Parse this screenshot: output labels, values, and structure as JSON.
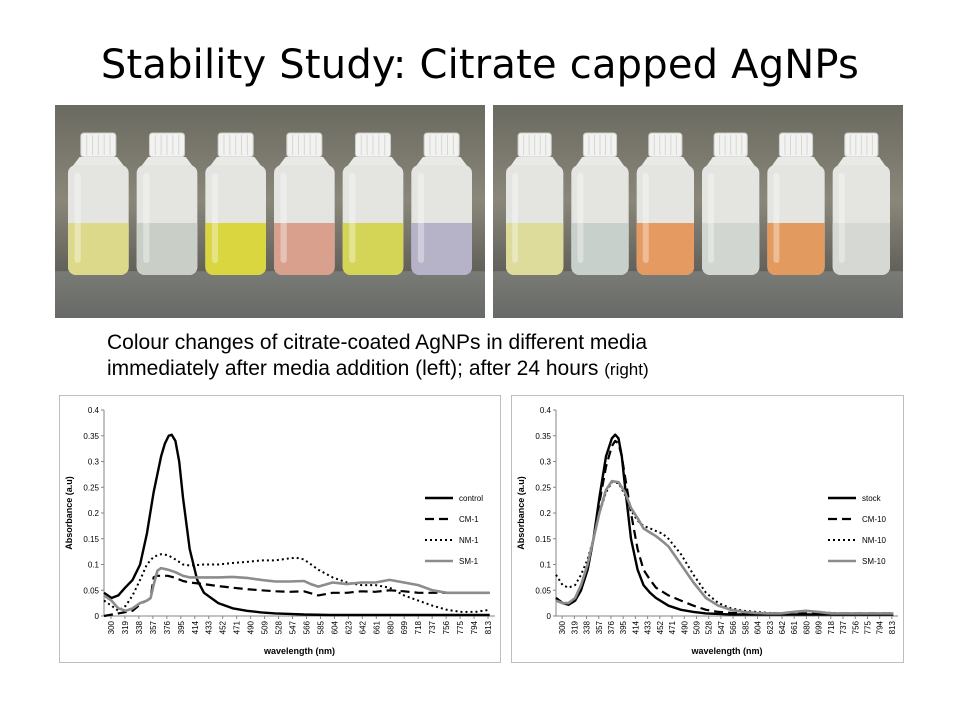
{
  "slide": {
    "title": "Stability Study: Citrate capped AgNPs",
    "caption_line1": "Colour changes of citrate-coated AgNPs in different media",
    "caption_line2": "immediately after media addition (left); after 24 hours",
    "caption_line2_suffix": "(right)"
  },
  "photos": {
    "left": {
      "bottles": [
        {
          "liquid": "#dcd98a"
        },
        {
          "liquid": "#c9cec6"
        },
        {
          "liquid": "#d9d640"
        },
        {
          "liquid": "#d9a08e"
        },
        {
          "liquid": "#d4d457"
        },
        {
          "liquid": "#b6b3c8"
        }
      ]
    },
    "right": {
      "bottles": [
        {
          "liquid": "#dddc9a"
        },
        {
          "liquid": "#c8d0cc"
        },
        {
          "liquid": "#e59a62"
        },
        {
          "liquid": "#d2d6d0"
        },
        {
          "liquid": "#e39a5e"
        },
        {
          "liquid": "#d6d8d4"
        }
      ]
    }
  },
  "chart_data": [
    {
      "type": "line",
      "title": "",
      "xlabel": "wavelength (nm)",
      "ylabel": "Absorbance (a.u)",
      "xlim": [
        300,
        820
      ],
      "ylim": [
        0,
        0.4
      ],
      "yticks": [
        "0",
        "0.05",
        "0.1",
        "0.15",
        "0.2",
        "0.25",
        "0.3",
        "0.35",
        "0.4"
      ],
      "xticks": [
        "300",
        "319",
        "338",
        "357",
        "376",
        "395",
        "414",
        "433",
        "452",
        "471",
        "490",
        "509",
        "528",
        "547",
        "566",
        "585",
        "604",
        "623",
        "642",
        "661",
        "680",
        "699",
        "718",
        "737",
        "756",
        "775",
        "794",
        "813"
      ],
      "legend": "right",
      "series": [
        {
          "name": "control",
          "style": "solid",
          "color": "#000000",
          "x": [
            300,
            310,
            319,
            328,
            338,
            348,
            357,
            366,
            376,
            381,
            386,
            390,
            395,
            400,
            405,
            414,
            424,
            433,
            452,
            471,
            490,
            509,
            528,
            547,
            566,
            600,
            640,
            680,
            720,
            760,
            800,
            813
          ],
          "y": [
            0.045,
            0.035,
            0.04,
            0.055,
            0.07,
            0.1,
            0.16,
            0.24,
            0.31,
            0.335,
            0.35,
            0.352,
            0.34,
            0.3,
            0.23,
            0.13,
            0.07,
            0.045,
            0.025,
            0.015,
            0.01,
            0.007,
            0.005,
            0.004,
            0.003,
            0.002,
            0.002,
            0.002,
            0.002,
            0.002,
            0.002,
            0.002
          ]
        },
        {
          "name": "CM-1",
          "style": "dashed",
          "color": "#000000",
          "x": [
            300,
            319,
            338,
            350,
            357,
            362,
            366,
            370,
            376,
            385,
            395,
            405,
            414,
            433,
            452,
            471,
            490,
            509,
            528,
            547,
            566,
            585,
            604,
            623,
            642,
            661,
            680,
            699,
            718,
            737,
            756,
            775,
            794,
            813
          ],
          "y": [
            0.0,
            0.005,
            0.01,
            0.025,
            0.03,
            0.035,
            0.075,
            0.078,
            0.078,
            0.078,
            0.074,
            0.068,
            0.065,
            0.062,
            0.058,
            0.055,
            0.052,
            0.05,
            0.048,
            0.047,
            0.048,
            0.04,
            0.045,
            0.045,
            0.048,
            0.047,
            0.05,
            0.048,
            0.045,
            0.045,
            0.045,
            0.045,
            0.045,
            0.045
          ]
        },
        {
          "name": "NM-1",
          "style": "dotted",
          "color": "#000000",
          "x": [
            300,
            310,
            319,
            329,
            338,
            348,
            357,
            366,
            376,
            385,
            395,
            405,
            414,
            433,
            452,
            471,
            490,
            509,
            528,
            547,
            556,
            566,
            585,
            604,
            623,
            642,
            661,
            680,
            699,
            718,
            737,
            756,
            775,
            794,
            813
          ],
          "y": [
            0.03,
            0.02,
            0.01,
            0.02,
            0.04,
            0.07,
            0.1,
            0.115,
            0.12,
            0.118,
            0.11,
            0.1,
            0.098,
            0.1,
            0.1,
            0.103,
            0.105,
            0.108,
            0.108,
            0.112,
            0.113,
            0.11,
            0.09,
            0.075,
            0.065,
            0.06,
            0.06,
            0.055,
            0.04,
            0.03,
            0.02,
            0.012,
            0.008,
            0.008,
            0.012
          ]
        },
        {
          "name": "SM-1",
          "style": "solid-gray",
          "color": "#8c8c8c",
          "x": [
            300,
            310,
            319,
            329,
            338,
            348,
            357,
            362,
            366,
            371,
            376,
            385,
            395,
            405,
            414,
            433,
            452,
            471,
            490,
            509,
            528,
            547,
            566,
            575,
            585,
            604,
            623,
            642,
            661,
            680,
            699,
            718,
            737,
            756,
            775,
            794,
            813
          ],
          "y": [
            0.04,
            0.03,
            0.015,
            0.01,
            0.015,
            0.025,
            0.03,
            0.035,
            0.06,
            0.088,
            0.093,
            0.09,
            0.085,
            0.078,
            0.075,
            0.075,
            0.075,
            0.076,
            0.074,
            0.07,
            0.067,
            0.067,
            0.068,
            0.062,
            0.057,
            0.065,
            0.062,
            0.065,
            0.065,
            0.07,
            0.065,
            0.06,
            0.05,
            0.045,
            0.045,
            0.045,
            0.045
          ]
        }
      ]
    },
    {
      "type": "line",
      "title": "",
      "xlabel": "wavelength (nm)",
      "ylabel": "Absorbance (a.u)",
      "xlim": [
        300,
        820
      ],
      "ylim": [
        0,
        0.4
      ],
      "yticks": [
        "0",
        "0.05",
        "0.1",
        "0.15",
        "0.2",
        "0.25",
        "0.3",
        "0.35",
        "0.4"
      ],
      "xticks": [
        "300",
        "319",
        "338",
        "357",
        "376",
        "395",
        "414",
        "433",
        "452",
        "471",
        "490",
        "509",
        "528",
        "547",
        "566",
        "585",
        "604",
        "623",
        "642",
        "661",
        "680",
        "699",
        "718",
        "737",
        "756",
        "775",
        "794",
        "813"
      ],
      "legend": "right",
      "series": [
        {
          "name": "stock",
          "style": "solid",
          "color": "#000000",
          "x": [
            300,
            310,
            319,
            329,
            338,
            348,
            357,
            366,
            376,
            385,
            390,
            395,
            400,
            405,
            414,
            424,
            433,
            443,
            452,
            471,
            490,
            509,
            528,
            547,
            566,
            585,
            604,
            623,
            642,
            661,
            680,
            700,
            750,
            800,
            813
          ],
          "y": [
            0.035,
            0.025,
            0.022,
            0.03,
            0.05,
            0.09,
            0.15,
            0.23,
            0.31,
            0.345,
            0.352,
            0.345,
            0.31,
            0.25,
            0.15,
            0.09,
            0.06,
            0.045,
            0.035,
            0.02,
            0.012,
            0.008,
            0.005,
            0.004,
            0.003,
            0.003,
            0.003,
            0.003,
            0.003,
            0.003,
            0.003,
            0.003,
            0.003,
            0.003,
            0.003
          ]
        },
        {
          "name": "CM-10",
          "style": "dashed",
          "color": "#000000",
          "x": [
            300,
            310,
            319,
            329,
            338,
            348,
            357,
            366,
            376,
            385,
            390,
            395,
            400,
            405,
            414,
            424,
            433,
            443,
            452,
            471,
            490,
            509,
            528,
            547,
            566,
            585,
            604,
            623,
            642,
            661,
            680,
            700,
            750,
            800,
            813
          ],
          "y": [
            0.035,
            0.025,
            0.022,
            0.03,
            0.05,
            0.09,
            0.15,
            0.22,
            0.29,
            0.33,
            0.34,
            0.335,
            0.31,
            0.27,
            0.2,
            0.13,
            0.09,
            0.07,
            0.055,
            0.04,
            0.03,
            0.02,
            0.012,
            0.008,
            0.006,
            0.005,
            0.005,
            0.005,
            0.005,
            0.005,
            0.005,
            0.005,
            0.005,
            0.005,
            0.005
          ]
        },
        {
          "name": "NM-10",
          "style": "dotted",
          "color": "#000000",
          "x": [
            300,
            310,
            319,
            329,
            338,
            348,
            357,
            366,
            376,
            385,
            395,
            405,
            414,
            424,
            433,
            443,
            452,
            462,
            471,
            490,
            509,
            528,
            547,
            566,
            585,
            604,
            623,
            642,
            661,
            680,
            699,
            718,
            737,
            756,
            775,
            794,
            813
          ],
          "y": [
            0.08,
            0.06,
            0.055,
            0.06,
            0.08,
            0.11,
            0.15,
            0.2,
            0.24,
            0.26,
            0.258,
            0.235,
            0.205,
            0.185,
            0.175,
            0.17,
            0.165,
            0.16,
            0.15,
            0.12,
            0.08,
            0.045,
            0.025,
            0.015,
            0.01,
            0.008,
            0.006,
            0.005,
            0.008,
            0.01,
            0.008,
            0.006,
            0.005,
            0.005,
            0.005,
            0.005,
            0.005
          ]
        },
        {
          "name": "SM-10",
          "style": "solid-gray",
          "color": "#8c8c8c",
          "x": [
            300,
            310,
            319,
            329,
            338,
            348,
            357,
            366,
            376,
            385,
            395,
            405,
            414,
            424,
            433,
            443,
            452,
            462,
            471,
            490,
            509,
            528,
            547,
            566,
            585,
            604,
            623,
            642,
            661,
            680,
            699,
            718,
            737,
            756,
            775,
            794,
            813
          ],
          "y": [
            0.03,
            0.025,
            0.025,
            0.035,
            0.06,
            0.1,
            0.15,
            0.2,
            0.245,
            0.262,
            0.26,
            0.24,
            0.21,
            0.19,
            0.17,
            0.162,
            0.155,
            0.145,
            0.135,
            0.1,
            0.065,
            0.035,
            0.02,
            0.012,
            0.008,
            0.006,
            0.005,
            0.005,
            0.008,
            0.01,
            0.008,
            0.005,
            0.005,
            0.005,
            0.005,
            0.005,
            0.005
          ]
        }
      ]
    }
  ]
}
